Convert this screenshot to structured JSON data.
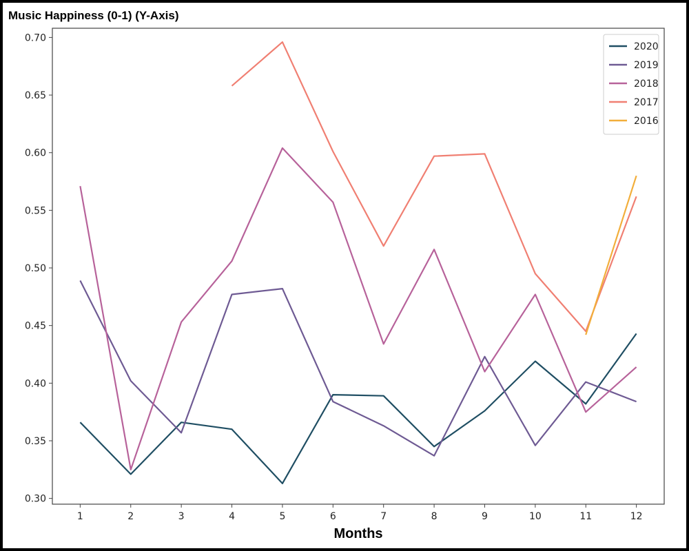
{
  "chart_data": {
    "type": "line",
    "ylabel": "Music Happiness (0-1) (Y-Axis)",
    "xlabel": "Months",
    "x": [
      1,
      2,
      3,
      4,
      5,
      6,
      7,
      8,
      9,
      10,
      11,
      12
    ],
    "ylim": [
      0.295,
      0.708
    ],
    "yticks": [
      "0.30",
      "0.35",
      "0.40",
      "0.45",
      "0.50",
      "0.55",
      "0.60",
      "0.65",
      "0.70"
    ],
    "xticks": [
      "1",
      "2",
      "3",
      "4",
      "5",
      "6",
      "7",
      "8",
      "9",
      "10",
      "11",
      "12"
    ],
    "grid": false,
    "legend_position": "top-right",
    "series": [
      {
        "name": "2020",
        "color": "#1f4e63",
        "values": [
          0.366,
          0.321,
          0.366,
          0.36,
          0.313,
          0.39,
          0.389,
          0.345,
          0.376,
          0.419,
          0.382,
          0.443
        ]
      },
      {
        "name": "2019",
        "color": "#6e5a93",
        "values": [
          0.489,
          0.402,
          0.357,
          0.477,
          0.482,
          0.384,
          0.363,
          0.337,
          0.423,
          0.346,
          0.401,
          0.384
        ]
      },
      {
        "name": "2018",
        "color": "#b7629a",
        "values": [
          0.571,
          0.325,
          0.453,
          0.506,
          0.604,
          0.557,
          0.434,
          0.516,
          0.41,
          0.477,
          0.375,
          0.414
        ]
      },
      {
        "name": "2017",
        "color": "#f07f72",
        "values": [
          null,
          null,
          null,
          0.658,
          0.696,
          0.601,
          0.519,
          0.597,
          0.599,
          0.495,
          0.445,
          0.562
        ]
      },
      {
        "name": "2016",
        "color": "#f2ae3b",
        "values": [
          null,
          null,
          null,
          null,
          null,
          null,
          null,
          null,
          null,
          null,
          0.442,
          0.58
        ]
      }
    ]
  }
}
